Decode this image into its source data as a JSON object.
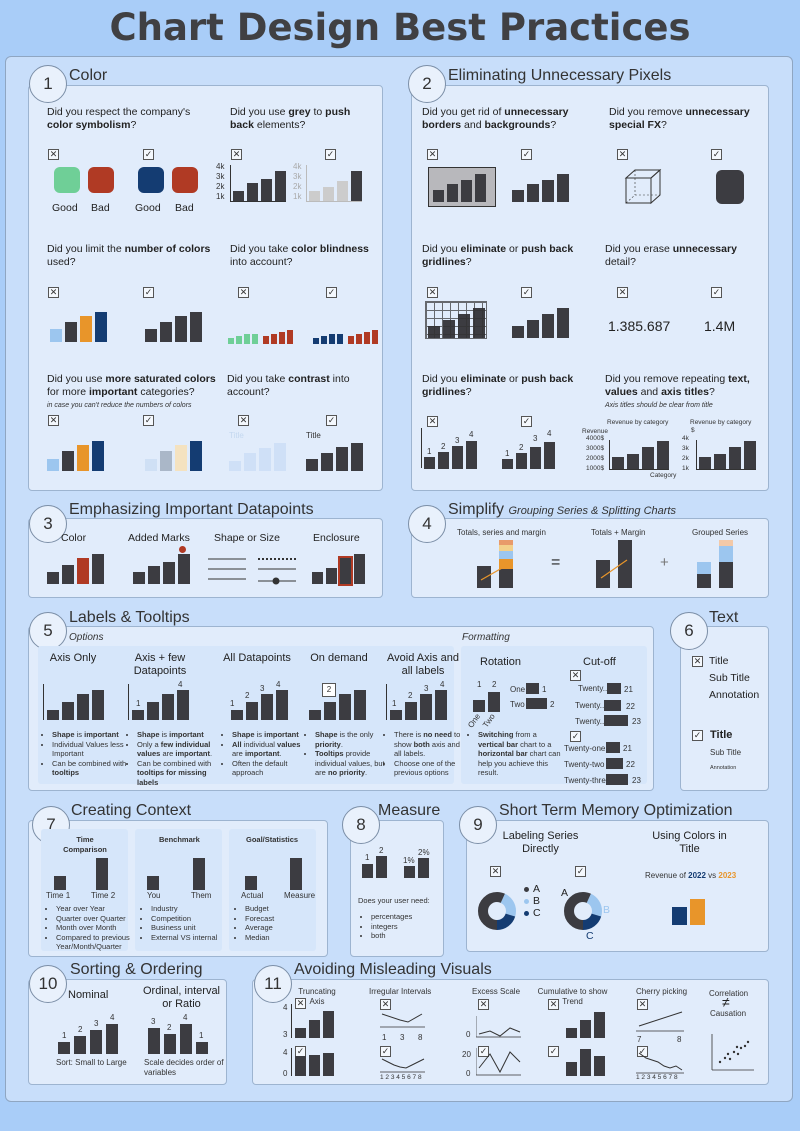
{
  "page": {
    "title": "Chart Design Best Practices"
  },
  "colors": {
    "bar": "#3c3c41",
    "good": "#6fcf97",
    "bad": "#b03a24",
    "navy": "#143c72",
    "orange": "#e8952a",
    "light_blue": "#9cc6ef"
  },
  "s1": {
    "num": "1",
    "title": "Color",
    "q1": "Did you respect the company's color symbolism?",
    "good": "Good",
    "bad": "Bad",
    "q2a": "Did you use ",
    "q2b": "grey",
    "q2c": " to ",
    "q2d": "push back",
    "q2e": " elements?",
    "ticks": [
      "4k",
      "3k",
      "2k",
      "1k"
    ],
    "q3a": "Did you limit the ",
    "q3b": "number of colors",
    "q3c": " used?",
    "q4a": "Did you take ",
    "q4b": "color blindness",
    "q4c": " into account?",
    "q5a": "Did you use ",
    "q5b": "more saturated colors",
    "q5c": " for more ",
    "q5d": "important",
    "q5e": " categories?",
    "q5note": "in case you can't reduce the numbers of colors",
    "q6a": "Did you take ",
    "q6b": "contrast",
    "q6c": " into account?",
    "chart_title": "Title"
  },
  "s2": {
    "num": "2",
    "title": "Eliminating Unnecessary Pixels",
    "q1a": "Did you get rid of ",
    "q1b": "unnecessary borders",
    "q1c": " and ",
    "q1d": "backgrounds",
    "q1e": "?",
    "q2a": "Did you remove ",
    "q2b": "unnecessary special FX",
    "q2c": "?",
    "q3a": "Did you ",
    "q3b": "eliminate",
    "q3c": " or ",
    "q3d": "push back gridlines",
    "q3e": "?",
    "q4a": "Did you erase ",
    "q4b": "unnecessary",
    "q4c": " detail?",
    "num_long": "1.385.687",
    "num_short": "1.4M",
    "q5a": "Did you ",
    "q5b": "eliminate",
    "q5c": " or ",
    "q5d": "push back gridlines",
    "q5e": "?",
    "q6a": "Did you remove repeating ",
    "q6b": "text, values",
    "q6c": " and ",
    "q6d": "axis titles",
    "q6e": "?",
    "q6note": "Axis titles should be clear from title",
    "labels": [
      "1",
      "2",
      "3",
      "4"
    ],
    "rev_title": "Revenue by category",
    "revenue": "Revenue",
    "category": "Category",
    "ticks_long": [
      "4000$",
      "3000$",
      "2000$",
      "1000$"
    ],
    "ticks_short": [
      "4k",
      "3k",
      "2k",
      "1k"
    ],
    "dollar": "$"
  },
  "s3": {
    "num": "3",
    "title": "Emphasizing Important Datapoints",
    "items": [
      "Color",
      "Added Marks",
      "Shape or Size",
      "Enclosure"
    ]
  },
  "s4": {
    "num": "4",
    "title": "Simplify",
    "subtitle": "Grouping Series & Splitting Charts",
    "a": "Totals, series and margin",
    "eq": "=",
    "b": "Totals + Margin",
    "plus": "+",
    "c": "Grouped Series"
  },
  "s5": {
    "num": "5",
    "title": "Labels & Tooltips",
    "options": "Options",
    "formatting": "Formatting",
    "cols": [
      {
        "h": "Axis Only",
        "bullets": [
          [
            "Shape",
            " is important"
          ],
          [
            "",
            "Individual Values less Important"
          ],
          [
            "",
            "Can be combined with "
          ]
        ],
        "extra": "tooltips"
      },
      {
        "h": "Axis + few Datapoints",
        "bullets": [
          [
            "Shape",
            " is important"
          ],
          [
            "",
            "Only a few individual values are important."
          ],
          [
            "",
            "Can be combined with tooltips for missing labels"
          ]
        ]
      },
      {
        "h": "All Datapoints",
        "bullets": [
          [
            "Shape",
            " is important"
          ],
          [
            "All",
            " individual values are important."
          ],
          [
            "",
            "Often the default approach"
          ]
        ]
      },
      {
        "h": "On demand",
        "bullets": [
          [
            "Shape",
            " is the only priority."
          ],
          [
            "Tooltips",
            " provide individual values, but are no priority."
          ]
        ]
      },
      {
        "h": "Avoid Axis and all labels",
        "bullets": [
          [
            "",
            "There is no need to show both axis and all labels."
          ],
          [
            "",
            "Choose one of the previous options"
          ]
        ]
      }
    ],
    "rotation": "Rotation",
    "cutoff": "Cut-off",
    "one": "One",
    "two": "Two",
    "n1": "1",
    "n2": "2",
    "twenty": "Twenty...",
    "cut_vals": [
      "21",
      "22",
      "23"
    ],
    "full_labels": [
      "Twenty-one",
      "Twenty-two",
      "Twenty-three"
    ],
    "switch_note": "Switching from a vertical bar chart to a horizontal bar chart can help you achieve this result.",
    "labels": [
      "1",
      "2",
      "3",
      "4"
    ]
  },
  "s6": {
    "num": "6",
    "title": "Text",
    "t1": "Title",
    "t2": "Sub Title",
    "t3": "Annotation",
    "b1": "Title",
    "b2": "Sub Title",
    "b3": "Annotation"
  },
  "s7": {
    "num": "7",
    "title": "Creating Context",
    "box1": {
      "h": "Time Comparison",
      "a": "Time 1",
      "b": "Time 2",
      "items": [
        "Year over Year",
        "Quarter over Quarter",
        "Month over Month",
        "Compared to previous Year/Month/Quarter"
      ]
    },
    "box2": {
      "h": "Benchmark",
      "a": "You",
      "b": "Them",
      "items": [
        "Industry",
        "Competition",
        "Business unit",
        "External VS internal"
      ]
    },
    "box3": {
      "h": "Goal/Statistics",
      "a": "Actual",
      "b": "Measure",
      "items": [
        "Budget",
        "Forecast",
        "Average",
        "Median"
      ]
    }
  },
  "s8": {
    "num": "8",
    "title": "Measure",
    "l1": "1",
    "l2": "2",
    "p1": "1%",
    "p2": "2%",
    "q": "Does your user need:",
    "items": [
      "percentages",
      "integers",
      "both"
    ]
  },
  "s9": {
    "num": "9",
    "title": "Short Term Memory Optimization",
    "col1": "Labeling Series Directly",
    "col2": "Using Colors in Title",
    "legend": [
      "A",
      "B",
      "C"
    ],
    "rev_a": "Revenue of ",
    "y1": "2022",
    "vs": " vs ",
    "y2": "2023"
  },
  "s10": {
    "num": "10",
    "title": "Sorting & Ordering",
    "nominal": "Nominal",
    "ordinal": "Ordinal, interval or Ratio",
    "labels_a": [
      "1",
      "2",
      "3",
      "4"
    ],
    "labels_b": [
      "3",
      "2",
      "4",
      "1"
    ],
    "sort_note": "Sort: Small to Large",
    "scale_note": "Scale decides order of variables"
  },
  "s11": {
    "num": "11",
    "title": "Avoiding Misleading Visuals",
    "cols": [
      "Truncating Axis",
      "Irregular Intervals",
      "Excess Scale",
      "Cumulative to show Trend",
      "Cherry picking",
      "Correlation"
    ],
    "neq": "≠",
    "causation": "Causation",
    "t_top": [
      "4",
      "3"
    ],
    "t_bot": [
      "4",
      "0"
    ],
    "irr": [
      "1",
      "3",
      "8"
    ],
    "irr_full": "1 2 3 4 5 6 7 8",
    "ex_top": "0",
    "ex_bot": [
      "20",
      "0"
    ],
    "cherry": [
      "7",
      "8"
    ],
    "cherry_full": "1 2 3 4 5 6 7 8"
  }
}
